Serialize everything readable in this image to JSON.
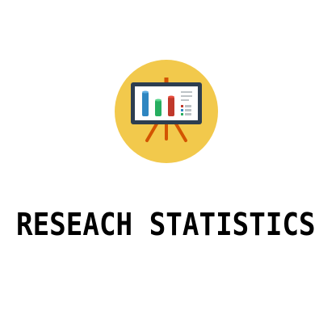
{
  "logo": {
    "icon": "presentation-board-chart-icon",
    "circle_color": "#F2C94C",
    "board_frame_color": "#2D3E50",
    "board_screen_color": "#FFFFFF",
    "easel_color": "#D35400",
    "bar_colors": [
      "#2E86C1",
      "#27AE60",
      "#C0392B"
    ],
    "legend_colors": [
      "#C0392B",
      "#2E86C1",
      "#27AE60"
    ]
  },
  "title": "RESEACH STATISTICS"
}
